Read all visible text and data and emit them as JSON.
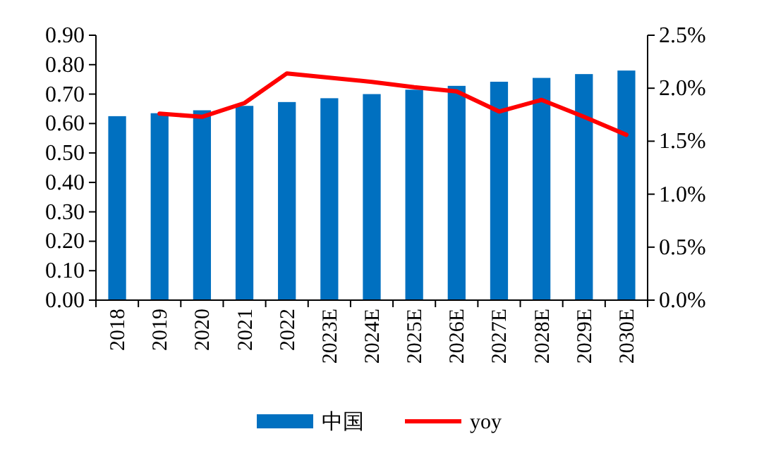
{
  "chart_data": {
    "type": "bar",
    "categories": [
      "2018",
      "2019",
      "2020",
      "2021",
      "2022",
      "2023E",
      "2024E",
      "2025E",
      "2026E",
      "2027E",
      "2028E",
      "2029E",
      "2030E"
    ],
    "series": [
      {
        "name": "中国",
        "color": "#0070c0",
        "values": [
          0.625,
          0.635,
          0.645,
          0.66,
          0.673,
          0.686,
          0.7,
          0.715,
          0.728,
          0.742,
          0.755,
          0.768,
          0.78
        ]
      },
      {
        "name": "yoy",
        "type": "line",
        "axis": "y2",
        "color": "#ff0000",
        "values": [
          null,
          1.76,
          1.73,
          1.86,
          2.14,
          2.1,
          2.06,
          2.01,
          1.97,
          1.78,
          1.89,
          1.73,
          1.56
        ]
      }
    ],
    "ylim": [
      0,
      0.9
    ],
    "yticks": [
      {
        "value": 0,
        "label": "0.00"
      },
      {
        "value": 0.1,
        "label": "0.10"
      },
      {
        "value": 0.2,
        "label": "0.20"
      },
      {
        "value": 0.3,
        "label": "0.30"
      },
      {
        "value": 0.4,
        "label": "0.40"
      },
      {
        "value": 0.5,
        "label": "0.50"
      },
      {
        "value": 0.6,
        "label": "0.60"
      },
      {
        "value": 0.7,
        "label": "0.70"
      },
      {
        "value": 0.8,
        "label": "0.80"
      },
      {
        "value": 0.9,
        "label": "0.90"
      }
    ],
    "y2lim": [
      0,
      2.5
    ],
    "y2ticks": [
      {
        "value": 0,
        "label": "0.0%"
      },
      {
        "value": 0.5,
        "label": "0.5%"
      },
      {
        "value": 1,
        "label": "1.0%"
      },
      {
        "value": 1.5,
        "label": "1.5%"
      },
      {
        "value": 2,
        "label": "2.0%"
      },
      {
        "value": 2.5,
        "label": "2.5%"
      }
    ],
    "legend": "bottom",
    "grid": false
  }
}
